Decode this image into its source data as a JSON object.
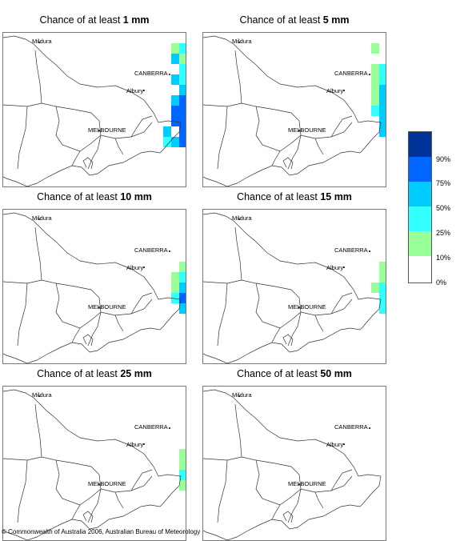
{
  "panels": [
    {
      "title_prefix": "Chance of at least ",
      "threshold": "1 mm",
      "cells": [
        [
          4,
          1
        ],
        [
          5,
          1
        ],
        [
          5,
          2
        ],
        [
          4,
          2
        ],
        [
          5,
          3
        ],
        [
          5,
          4
        ],
        [
          4,
          4
        ],
        [
          5,
          5
        ],
        [
          5,
          6
        ],
        [
          4,
          6
        ],
        [
          5,
          7
        ],
        [
          4,
          7
        ],
        [
          5,
          8
        ],
        [
          4,
          8
        ],
        [
          5,
          9
        ],
        [
          3,
          9
        ],
        [
          5,
          10
        ],
        [
          4,
          10
        ],
        [
          3,
          10
        ]
      ],
      "levels": [
        1,
        2,
        1,
        3,
        2,
        2,
        3,
        3,
        4,
        3,
        4,
        4,
        4,
        4,
        4,
        3,
        4,
        3,
        2
      ]
    },
    {
      "title_prefix": "Chance of at least ",
      "threshold": "5 mm",
      "cells": [
        [
          4,
          1
        ],
        [
          4,
          3
        ],
        [
          5,
          3
        ],
        [
          4,
          4
        ],
        [
          5,
          4
        ],
        [
          4,
          5
        ],
        [
          5,
          5
        ],
        [
          4,
          6
        ],
        [
          5,
          6
        ],
        [
          4,
          7
        ],
        [
          5,
          7
        ],
        [
          5,
          8
        ],
        [
          5,
          9
        ]
      ],
      "levels": [
        1,
        1,
        2,
        1,
        2,
        1,
        3,
        1,
        3,
        2,
        3,
        3,
        3
      ]
    },
    {
      "title_prefix": "Chance of at least ",
      "threshold": "10 mm",
      "cells": [
        [
          5,
          5
        ],
        [
          5,
          6
        ],
        [
          4,
          6
        ],
        [
          5,
          7
        ],
        [
          4,
          7
        ],
        [
          5,
          8
        ],
        [
          4,
          8
        ],
        [
          5,
          9
        ]
      ],
      "levels": [
        1,
        2,
        1,
        3,
        1,
        4,
        2,
        3
      ]
    },
    {
      "title_prefix": "Chance of at least ",
      "threshold": "15 mm",
      "cells": [
        [
          5,
          5
        ],
        [
          5,
          6
        ],
        [
          5,
          7
        ],
        [
          4,
          7
        ],
        [
          5,
          8
        ],
        [
          5,
          9
        ]
      ],
      "levels": [
        1,
        1,
        2,
        1,
        2,
        2
      ]
    },
    {
      "title_prefix": "Chance of at least ",
      "threshold": "25 mm",
      "cells": [
        [
          5,
          6
        ],
        [
          5,
          7
        ],
        [
          5,
          8
        ],
        [
          5,
          9
        ]
      ],
      "levels": [
        1,
        1,
        2,
        1
      ]
    },
    {
      "title_prefix": "Chance of at least ",
      "threshold": "50 mm",
      "cells": [],
      "levels": []
    }
  ],
  "places": {
    "mildura": "Mildura",
    "canberra": "CANBERRA",
    "albury": "Albury",
    "melbourne": "MELBOURNE"
  },
  "legend": {
    "ticks": [
      "90%",
      "75%",
      "50%",
      "25%",
      "10%",
      "0%"
    ],
    "colors": [
      "#003399",
      "#0066ff",
      "#00ccff",
      "#33ffff",
      "#99ff99",
      "#ffffff"
    ]
  },
  "copyright": "© Commonwealth of Australia 2006, Australian Bureau of Meteorology"
}
